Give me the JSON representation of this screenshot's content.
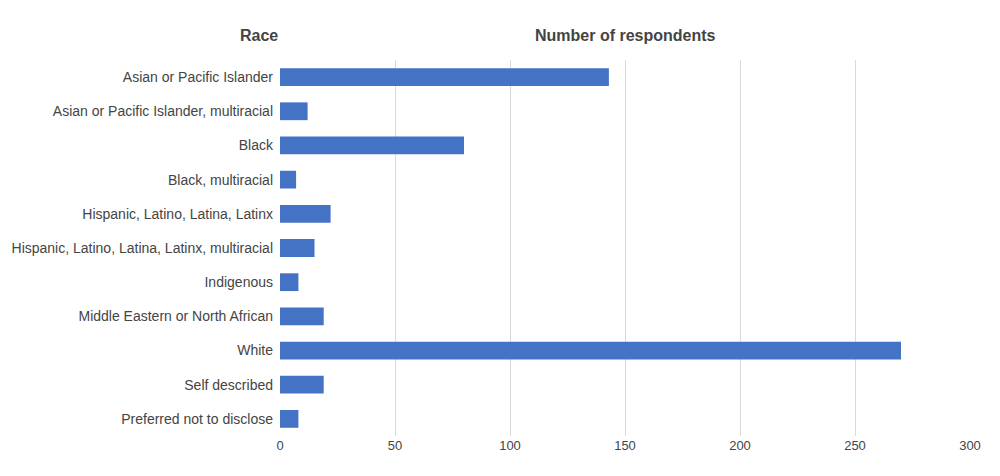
{
  "chart_data": {
    "type": "bar",
    "orientation": "horizontal",
    "ylabel": "Race",
    "xlabel": "Number of respondents",
    "categories": [
      "Asian or Pacific Islander",
      "Asian or Pacific Islander, multiracial",
      "Black",
      "Black, multiracial",
      "Hispanic, Latino, Latina, Latinx",
      "Hispanic, Latino, Latina, Latinx, multiracial",
      "Indigenous",
      "Middle Eastern or North African",
      "White",
      "Self described",
      "Preferred not to disclose"
    ],
    "values": [
      143,
      12,
      80,
      7,
      22,
      15,
      8,
      19,
      270,
      19,
      8
    ],
    "color": "#4472C4",
    "xlim": [
      0,
      300
    ],
    "xticks": [
      0,
      50,
      100,
      150,
      200,
      250,
      300
    ],
    "grid": true
  }
}
